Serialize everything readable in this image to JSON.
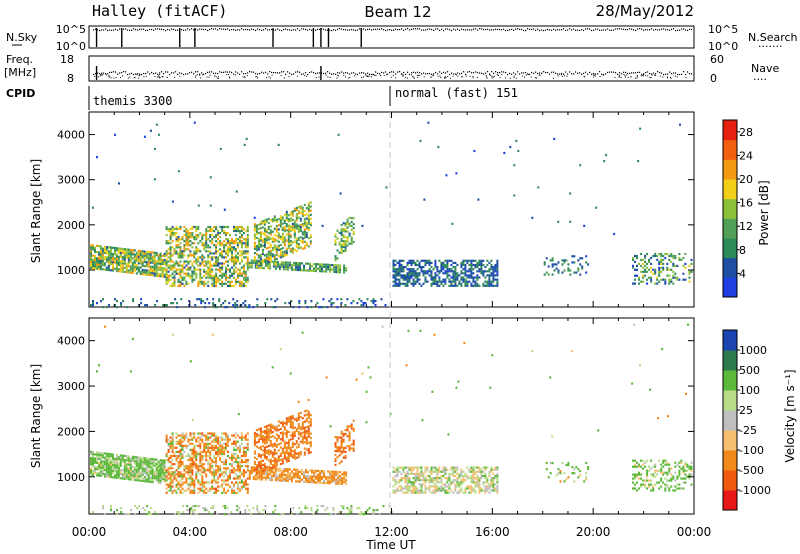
{
  "header": {
    "station": "Halley (fitACF)",
    "beam": "Beam 12",
    "date": "28/May/2012"
  },
  "strip_labels": {
    "nsky": "N.Sky",
    "nsky_ticks": [
      "10^5",
      "10^0"
    ],
    "nsearch": "N.Search",
    "nsearch_ticks": [
      "10^5",
      "10^0"
    ],
    "freq_line1": "Freq.",
    "freq_line2": "[MHz]",
    "freq_ticks": [
      "18",
      "8"
    ],
    "nave": "Nave",
    "nave_ticks": [
      "60",
      "0"
    ],
    "cpid": "CPID",
    "cpid_1": "themis 3300",
    "cpid_2": "normal (fast) 151"
  },
  "colors": {
    "power": [
      "#1f3fe0",
      "#1e4fa3",
      "#2f8a5a",
      "#52a058",
      "#8cc03a",
      "#f2d01a",
      "#f39a12",
      "#f06010",
      "#e52010"
    ],
    "velocity": [
      "#e81818",
      "#f05a10",
      "#f08a1a",
      "#f6c070",
      "#bfbfbf",
      "#b8dd88",
      "#5cb83a",
      "#2d7a4e",
      "#1c44b0"
    ],
    "ground_scatter": "#a0a0a0"
  },
  "chart_data": [
    {
      "type": "heatmap",
      "title": "Power",
      "ylabel": "Slant Range [km]",
      "xlabel": "Time UT",
      "x_ticks": [
        "00:00",
        "04:00",
        "08:00",
        "12:00",
        "16:00",
        "20:00",
        "00:00"
      ],
      "xlim_hours": [
        0,
        24
      ],
      "ylim": [
        180,
        4500
      ],
      "y_ticks": [
        1000,
        2000,
        3000,
        4000
      ],
      "colorbar_label": "Power [dB]",
      "colorbar_ticks": [
        4,
        8,
        12,
        16,
        20,
        24,
        28
      ],
      "colorbar_range": [
        0,
        30
      ],
      "scatter_regions": [
        {
          "t0": 0.0,
          "t1": 3.0,
          "r0": 950,
          "r1": 1500,
          "range_slope": -100,
          "density": 0.85,
          "value_mean": 14,
          "value_spread": 8
        },
        {
          "t0": 3.0,
          "t1": 6.3,
          "r0": 650,
          "r1": 2000,
          "range_slope": 0,
          "density": 0.55,
          "value_mean": 14,
          "value_spread": 9
        },
        {
          "t0": 6.3,
          "t1": 10.2,
          "r0": 1000,
          "r1": 1200,
          "range_slope": -60,
          "density": 0.8,
          "value_mean": 11,
          "value_spread": 6
        },
        {
          "t0": 6.5,
          "t1": 8.8,
          "r0": 1300,
          "r1": 2300,
          "range_slope": 250,
          "density": 0.6,
          "value_mean": 14,
          "value_spread": 8
        },
        {
          "t0": 9.7,
          "t1": 10.5,
          "r0": 1400,
          "r1": 2100,
          "range_slope": 200,
          "density": 0.45,
          "value_mean": 12,
          "value_spread": 6
        },
        {
          "t0": 12.0,
          "t1": 16.2,
          "r0": 650,
          "r1": 1250,
          "range_slope": 0,
          "density": 0.6,
          "value_mean": 6,
          "value_spread": 3
        },
        {
          "t0": 18.0,
          "t1": 19.8,
          "r0": 900,
          "r1": 1350,
          "range_slope": 0,
          "density": 0.18,
          "value_mean": 8,
          "value_spread": 5
        },
        {
          "t0": 21.5,
          "t1": 23.9,
          "r0": 700,
          "r1": 1400,
          "range_slope": 0,
          "density": 0.35,
          "value_mean": 10,
          "value_spread": 8
        },
        {
          "t0": 0.0,
          "t1": 12.0,
          "r0": 180,
          "r1": 400,
          "range_slope": 0,
          "density": 0.2,
          "value_mean": 6,
          "value_spread": 4
        },
        {
          "t0": 0.0,
          "t1": 24.0,
          "r0": 1800,
          "r1": 4400,
          "range_slope": 0,
          "density": 0.003,
          "value_mean": 6,
          "value_spread": 4
        }
      ]
    },
    {
      "type": "heatmap",
      "title": "Velocity",
      "ylabel": "Slant Range [km]",
      "xlabel": "Time UT",
      "x_ticks": [
        "00:00",
        "04:00",
        "08:00",
        "12:00",
        "16:00",
        "20:00",
        "00:00"
      ],
      "xlim_hours": [
        0,
        24
      ],
      "ylim": [
        180,
        4500
      ],
      "y_ticks": [
        1000,
        2000,
        3000,
        4000
      ],
      "colorbar_label": "Velocity [m s⁻¹]",
      "colorbar_ticks": [
        "1000",
        "500",
        "100",
        "25",
        "-25",
        "-100",
        "-500",
        "-1000"
      ],
      "scatter_regions": [
        {
          "t0": 0.0,
          "t1": 3.0,
          "r0": 950,
          "r1": 1500,
          "range_slope": -100,
          "density": 0.85,
          "value_mean": 150,
          "value_spread": 200
        },
        {
          "t0": 3.0,
          "t1": 6.3,
          "r0": 650,
          "r1": 2000,
          "range_slope": 0,
          "density": 0.55,
          "value_mean": -200,
          "value_spread": 400
        },
        {
          "t0": 6.3,
          "t1": 10.2,
          "r0": 900,
          "r1": 1200,
          "range_slope": -60,
          "density": 0.8,
          "value_mean": -150,
          "value_spread": 150
        },
        {
          "t0": 6.5,
          "t1": 8.8,
          "r0": 1300,
          "r1": 2300,
          "range_slope": 250,
          "density": 0.6,
          "value_mean": -400,
          "value_spread": 300
        },
        {
          "t0": 9.7,
          "t1": 10.5,
          "r0": 1400,
          "r1": 2100,
          "range_slope": 200,
          "density": 0.45,
          "value_mean": -500,
          "value_spread": 200
        },
        {
          "t0": 12.0,
          "t1": 16.2,
          "r0": 650,
          "r1": 1250,
          "range_slope": 0,
          "density": 0.6,
          "value_mean": 20,
          "value_spread": 120
        },
        {
          "t0": 18.0,
          "t1": 19.8,
          "r0": 900,
          "r1": 1350,
          "range_slope": 0,
          "density": 0.18,
          "value_mean": 150,
          "value_spread": 300
        },
        {
          "t0": 21.5,
          "t1": 23.9,
          "r0": 700,
          "r1": 1400,
          "range_slope": 0,
          "density": 0.35,
          "value_mean": 200,
          "value_spread": 300
        },
        {
          "t0": 0.0,
          "t1": 12.0,
          "r0": 180,
          "r1": 400,
          "range_slope": 0,
          "density": 0.2,
          "value_mean": 60,
          "value_spread": 80
        },
        {
          "t0": 0.0,
          "t1": 24.0,
          "r0": 1800,
          "r1": 4400,
          "range_slope": 0,
          "density": 0.003,
          "value_mean": 100,
          "value_spread": 300
        }
      ]
    }
  ],
  "status_strips": {
    "nsky_dropouts_hours": [
      0.3,
      1.3,
      3.6,
      4.2,
      7.3,
      8.9,
      9.2,
      9.5,
      10.8
    ],
    "freq_dropouts_hours": [
      0.3,
      9.2
    ],
    "cpid_change_hour": 12.0
  }
}
